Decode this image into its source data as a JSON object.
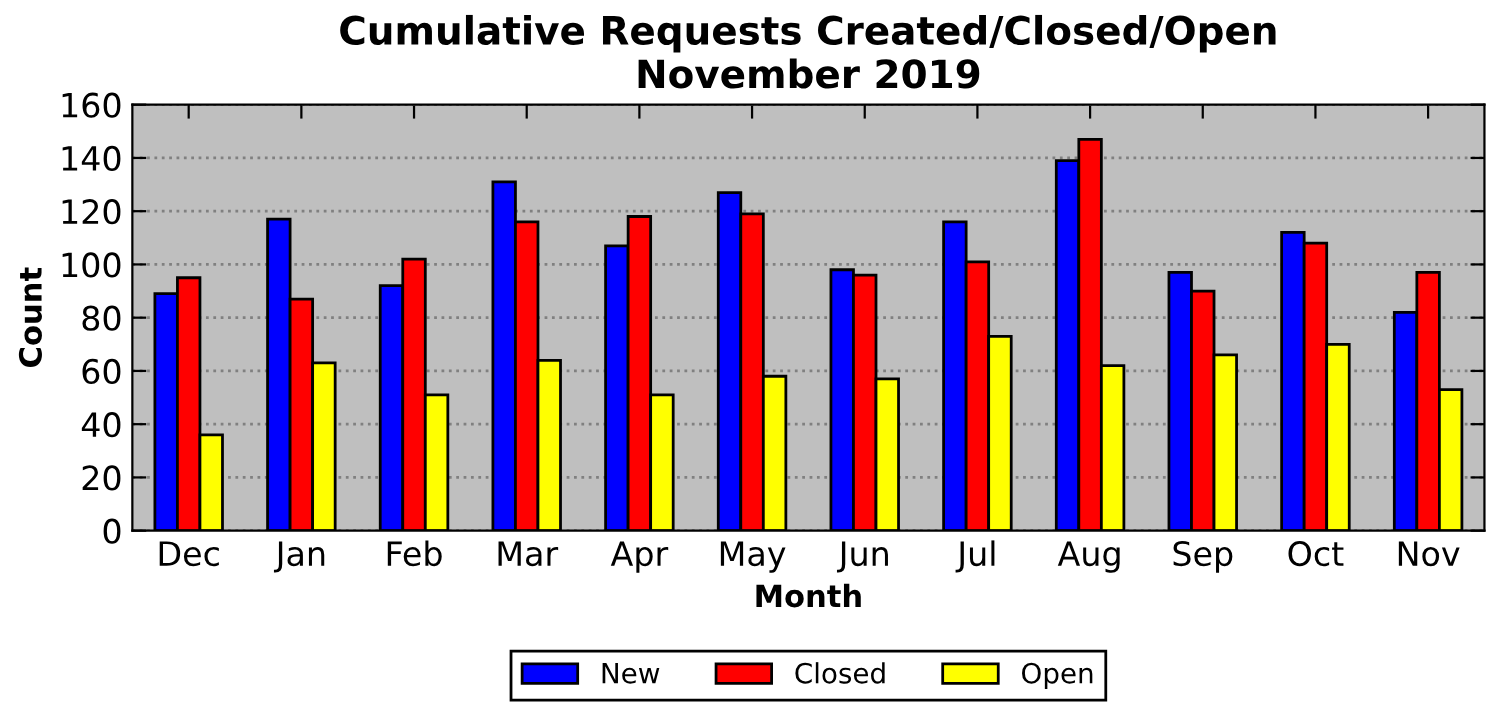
{
  "chart_data": {
    "type": "bar",
    "title": "Cumulative Requests Created/Closed/Open\nNovember 2019",
    "xlabel": "Month",
    "ylabel": "Count",
    "categories": [
      "Dec",
      "Jan",
      "Feb",
      "Mar",
      "Apr",
      "May",
      "Jun",
      "Jul",
      "Aug",
      "Sep",
      "Oct",
      "Nov"
    ],
    "series": [
      {
        "name": "New",
        "color": "#0000ff",
        "values": [
          89,
          117,
          92,
          131,
          107,
          127,
          98,
          116,
          139,
          97,
          112,
          82
        ]
      },
      {
        "name": "Closed",
        "color": "#ff0000",
        "values": [
          95,
          87,
          102,
          116,
          118,
          119,
          96,
          101,
          147,
          90,
          108,
          97
        ]
      },
      {
        "name": "Open",
        "color": "#ffff00",
        "values": [
          36,
          63,
          51,
          64,
          51,
          58,
          57,
          73,
          62,
          66,
          70,
          53
        ]
      }
    ],
    "ylim": [
      0,
      160
    ],
    "yticks": [
      0,
      20,
      40,
      60,
      80,
      100,
      120,
      140,
      160
    ],
    "grid": "y",
    "legend": "bottom"
  }
}
